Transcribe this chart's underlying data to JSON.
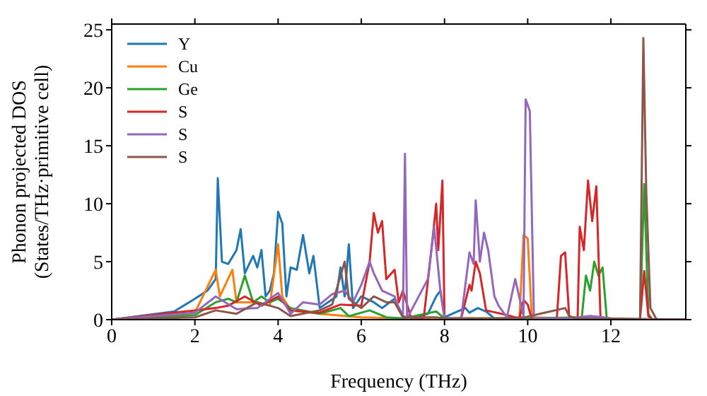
{
  "chart_data": {
    "type": "line",
    "xlabel": "Frequency (THz)",
    "ylabel": "Phonon projected DOS\n(States/THz·primitive cell)",
    "xlim": [
      0,
      13.8
    ],
    "xticks": [
      0,
      2,
      4,
      6,
      8,
      10,
      12
    ],
    "ylim": [
      0,
      25.5
    ],
    "yticks": [
      0,
      5,
      10,
      15,
      20,
      25
    ],
    "grid": false,
    "legend": "top left",
    "marker": "none",
    "line_style": "solid",
    "series": [
      {
        "name": "Y",
        "color": "#1f77b4",
        "x": [
          0,
          1.5,
          2,
          2.3,
          2.5,
          2.55,
          2.65,
          2.8,
          3,
          3.1,
          3.2,
          3.4,
          3.5,
          3.6,
          3.7,
          3.8,
          3.9,
          4,
          4.1,
          4.2,
          4.3,
          4.45,
          4.6,
          4.75,
          4.85,
          5,
          5.2,
          5.4,
          5.5,
          5.6,
          5.7,
          5.8,
          6,
          6.3,
          6.5,
          6.8,
          7,
          7.2,
          7.6,
          7.8,
          7.9,
          8,
          8.5,
          8.6,
          8.8,
          9,
          9.2,
          9.9,
          10,
          11,
          11.5,
          12,
          13.8
        ],
        "values": [
          0,
          0.7,
          1.8,
          2.5,
          3.5,
          12.2,
          5,
          4.8,
          6,
          7.8,
          4,
          5.5,
          4.5,
          6,
          2,
          2.5,
          4,
          9.3,
          8.3,
          2,
          4.5,
          4.3,
          7.3,
          4,
          5.5,
          1,
          1.5,
          2,
          4.5,
          2,
          6.5,
          1,
          2,
          1.5,
          1,
          1.8,
          0.3,
          0.1,
          0.5,
          2,
          2.5,
          0.2,
          1,
          0.6,
          1,
          0.7,
          0.1,
          0.2,
          0.1,
          0.1,
          0.3,
          0.1,
          0
        ]
      },
      {
        "name": "Cu",
        "color": "#ff7f0e",
        "x": [
          0,
          2,
          2.5,
          2.6,
          2.9,
          3,
          3.5,
          3.8,
          4,
          4.1,
          4.3,
          5,
          6,
          7,
          9.8,
          9.9,
          10,
          10.1,
          11,
          13.8
        ],
        "values": [
          0,
          0.6,
          4.3,
          2,
          4.3,
          1.5,
          1.5,
          1.2,
          6.5,
          2,
          0.8,
          0.5,
          0.2,
          0.1,
          0.1,
          7.3,
          7,
          0.2,
          0.1,
          0
        ]
      },
      {
        "name": "Ge",
        "color": "#2ca02c",
        "x": [
          0,
          2,
          2.5,
          2.8,
          3,
          3.2,
          3.4,
          3.6,
          3.8,
          4,
          4.3,
          5,
          5.5,
          5.7,
          6.2,
          6.6,
          7,
          7.8,
          8,
          10,
          11.3,
          11.4,
          11.5,
          11.6,
          11.7,
          11.8,
          11.9,
          12.7,
          12.8,
          12.9,
          13,
          13.8
        ],
        "values": [
          0,
          0.4,
          1.5,
          1.8,
          1.5,
          3.8,
          1.5,
          2,
          1.5,
          1.8,
          1,
          0.5,
          1,
          0.3,
          0.8,
          0.2,
          0.1,
          0.7,
          0.1,
          0.1,
          0.2,
          3.8,
          2.5,
          5,
          3.8,
          4.5,
          0.1,
          0,
          11.7,
          0.5,
          0,
          0
        ]
      },
      {
        "name": "S",
        "color": "#d62728",
        "x": [
          0,
          2,
          2.5,
          2.8,
          3.2,
          3.6,
          4,
          4.3,
          5,
          5.5,
          6,
          6.2,
          6.3,
          6.4,
          6.5,
          6.6,
          6.8,
          6.9,
          7,
          7.2,
          7.5,
          7.7,
          7.8,
          7.85,
          7.95,
          8,
          8.4,
          8.6,
          8.65,
          8.75,
          8.85,
          9,
          9.5,
          9.8,
          9.9,
          10,
          10.1,
          10.7,
          10.8,
          10.9,
          11,
          11.2,
          11.25,
          11.35,
          11.45,
          11.55,
          11.65,
          11.75,
          12.7,
          12.8,
          12.9,
          13,
          13.8
        ],
        "values": [
          0,
          0.8,
          1,
          1.2,
          2,
          1.2,
          2,
          0.8,
          0.6,
          1.3,
          1.2,
          5,
          9.2,
          7.5,
          8.5,
          3.5,
          4.3,
          1.5,
          2.5,
          0.1,
          0.1,
          6.5,
          10,
          6,
          12,
          0.1,
          0.1,
          3,
          2.5,
          5,
          4,
          0.8,
          0.4,
          0.1,
          1.7,
          1.3,
          0,
          0.1,
          5.5,
          5.8,
          0.1,
          0.1,
          8,
          6,
          12,
          8.5,
          11.5,
          0.1,
          0,
          4.2,
          0.3,
          0,
          0
        ]
      },
      {
        "name": "S",
        "color": "#9467bd",
        "x": [
          0,
          2,
          2.5,
          3,
          3.5,
          4,
          4.3,
          4.6,
          5,
          5.3,
          5.6,
          5.8,
          6,
          6.2,
          6.3,
          6.5,
          6.8,
          6.9,
          7,
          7.05,
          7.1,
          7.6,
          7.75,
          7.9,
          8,
          8.4,
          8.6,
          8.7,
          8.75,
          8.85,
          8.95,
          9.05,
          9.2,
          9.3,
          9.5,
          9.7,
          9.9,
          9.95,
          10.05,
          10.15,
          11,
          11.5,
          11.8,
          12,
          13.8
        ],
        "values": [
          0,
          0.6,
          2,
          0.9,
          1,
          2.3,
          0.5,
          1.5,
          1.3,
          2.2,
          2.5,
          1.5,
          3,
          5,
          4,
          2.5,
          2,
          1,
          0.2,
          14.3,
          0.1,
          3.5,
          8,
          2.5,
          0.1,
          0.1,
          5.8,
          4.8,
          10.3,
          5,
          7.5,
          6,
          2,
          1.2,
          0.2,
          3.5,
          0.3,
          19,
          18,
          0.1,
          0.1,
          0.3,
          0.2,
          0,
          0
        ]
      },
      {
        "name": "S",
        "color": "#8c564b",
        "x": [
          0,
          2,
          2.5,
          3,
          3.5,
          4,
          4.3,
          5,
          5.3,
          5.6,
          5.7,
          6,
          6.3,
          6.6,
          6.8,
          7,
          7.8,
          8,
          9.8,
          10.9,
          11,
          11.2,
          12.7,
          12.78,
          12.85,
          12.95,
          13.1,
          13.8
        ],
        "values": [
          0,
          0.2,
          0.8,
          0.5,
          1.5,
          1,
          0.3,
          0.8,
          1.3,
          5,
          1.8,
          1,
          2,
          1.5,
          1.5,
          0.2,
          0.2,
          0.1,
          0.1,
          1,
          0.3,
          0.1,
          0,
          24.3,
          11,
          1,
          0,
          0
        ]
      }
    ]
  }
}
